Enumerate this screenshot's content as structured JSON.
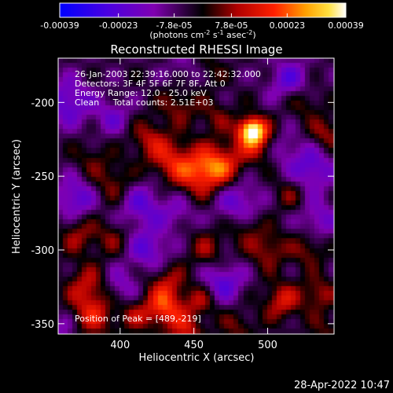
{
  "chart_data": {
    "type": "heatmap",
    "title": "Reconstructed RHESSI Image",
    "xlabel": "Heliocentric X (arcsec)",
    "ylabel": "Heliocentric Y (arcsec)",
    "xlim": [
      358,
      545
    ],
    "ylim": [
      -357,
      -170
    ],
    "x_ticks": [
      400,
      450,
      500
    ],
    "y_ticks": [
      -350,
      -300,
      -250,
      -200
    ],
    "colorbar": {
      "range": [
        -0.00039,
        0.00039
      ],
      "tick_values": [
        -0.00039,
        -0.00023,
        -7.8e-05,
        7.8e-05,
        0.00023,
        0.00039
      ],
      "tick_labels": [
        "-0.00039",
        "-0.00023",
        "-7.8e-05",
        "7.8e-05",
        "0.00023",
        "0.00039"
      ],
      "units_label": "(photons cm",
      "units_sup1": "-2",
      "units_mid1": " s",
      "units_sup2": "-1",
      "units_mid2": " asec",
      "units_sup3": "-2",
      "units_end": ")"
    },
    "annotations": [
      "26-Jan-2003 22:39:16.000 to 22:42:32.000",
      "Detectors: 3F 4F 5F 6F 7F 8F, Att 0",
      "Energy Range: 12.0 - 25.0 keV",
      "Clean     Total counts: 2.51E+03"
    ],
    "peak_label": "Position of Peak = [489,-219]",
    "peak": {
      "x": 489,
      "y": -219,
      "value": 0.00039
    },
    "blobs": [
      {
        "x": 489,
        "y": -219,
        "v": 0.00036,
        "s": 6
      },
      {
        "x": 493,
        "y": -226,
        "v": 0.00022,
        "s": 9
      },
      {
        "x": 455,
        "y": -248,
        "v": 0.00024,
        "s": 11
      },
      {
        "x": 470,
        "y": -242,
        "v": 0.0002,
        "s": 10
      },
      {
        "x": 435,
        "y": -240,
        "v": 0.00018,
        "s": 10
      },
      {
        "x": 420,
        "y": -225,
        "v": 0.00014,
        "s": 9
      },
      {
        "x": 440,
        "y": -202,
        "v": 0.00012,
        "s": 9
      },
      {
        "x": 465,
        "y": -210,
        "v": 0.0001,
        "s": 8
      },
      {
        "x": 395,
        "y": -255,
        "v": 0.00012,
        "s": 10
      },
      {
        "x": 380,
        "y": -238,
        "v": 8e-05,
        "s": 8
      },
      {
        "x": 372,
        "y": -290,
        "v": 0.00013,
        "s": 9
      },
      {
        "x": 395,
        "y": -292,
        "v": 0.0001,
        "s": 8
      },
      {
        "x": 378,
        "y": -325,
        "v": 0.00016,
        "s": 10
      },
      {
        "x": 382,
        "y": -345,
        "v": 0.00018,
        "s": 10
      },
      {
        "x": 410,
        "y": -345,
        "v": 0.00012,
        "s": 8
      },
      {
        "x": 432,
        "y": -322,
        "v": 0.00014,
        "s": 9
      },
      {
        "x": 430,
        "y": -340,
        "v": 0.00024,
        "s": 9
      },
      {
        "x": 445,
        "y": -355,
        "v": 0.00016,
        "s": 8
      },
      {
        "x": 455,
        "y": -335,
        "v": 0.00014,
        "s": 8
      },
      {
        "x": 460,
        "y": -300,
        "v": 0.00012,
        "s": 9
      },
      {
        "x": 485,
        "y": -285,
        "v": 0.0001,
        "s": 8
      },
      {
        "x": 500,
        "y": -300,
        "v": 0.00014,
        "s": 9
      },
      {
        "x": 510,
        "y": -335,
        "v": 0.00018,
        "s": 9
      },
      {
        "x": 535,
        "y": -330,
        "v": 0.00014,
        "s": 8
      },
      {
        "x": 528,
        "y": -300,
        "v": 0.00012,
        "s": 8
      },
      {
        "x": 540,
        "y": -222,
        "v": 0.00014,
        "s": 8
      },
      {
        "x": 525,
        "y": -200,
        "v": 0.0001,
        "s": 8
      },
      {
        "x": 515,
        "y": -262,
        "v": 0.0001,
        "s": 8
      },
      {
        "x": 540,
        "y": -355,
        "v": 8e-05,
        "s": 8
      },
      {
        "x": 480,
        "y": -352,
        "v": 0.0001,
        "s": 8
      },
      {
        "x": 460,
        "y": -178,
        "v": 8e-05,
        "s": 8
      },
      {
        "x": 365,
        "y": -200,
        "v": -0.00018,
        "s": 11
      },
      {
        "x": 370,
        "y": -265,
        "v": -0.00018,
        "s": 10
      },
      {
        "x": 415,
        "y": -270,
        "v": -0.00016,
        "s": 11
      },
      {
        "x": 420,
        "y": -300,
        "v": -0.00016,
        "s": 10
      },
      {
        "x": 440,
        "y": -275,
        "v": -0.0001,
        "s": 8
      },
      {
        "x": 480,
        "y": -268,
        "v": -0.00016,
        "s": 11
      },
      {
        "x": 530,
        "y": -245,
        "v": -0.00018,
        "s": 11
      },
      {
        "x": 515,
        "y": -185,
        "v": -0.00016,
        "s": 10
      },
      {
        "x": 395,
        "y": -210,
        "v": -0.00012,
        "s": 9
      },
      {
        "x": 470,
        "y": -322,
        "v": -0.00018,
        "s": 10
      },
      {
        "x": 535,
        "y": -280,
        "v": -0.00014,
        "s": 9
      },
      {
        "x": 400,
        "y": -325,
        "v": -0.00012,
        "s": 9
      },
      {
        "x": 510,
        "y": -230,
        "v": -0.0001,
        "s": 8
      },
      {
        "x": 360,
        "y": -355,
        "v": -0.0001,
        "s": 8
      },
      {
        "x": 445,
        "y": -178,
        "v": -8e-05,
        "s": 9
      }
    ],
    "grid": false
  },
  "footer_date": "28-Apr-2022 10:47"
}
